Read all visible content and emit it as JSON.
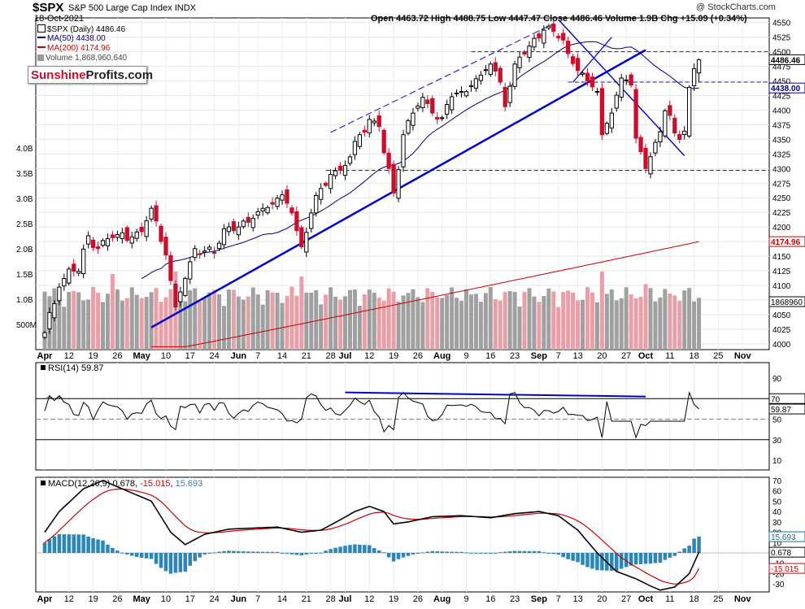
{
  "header": {
    "symbol": "$SPX",
    "name": "S&P 500 Large Cap Index",
    "exchange": "INDX",
    "date": "18-Oct-2021",
    "ohlc": "Open 4463.72  High 4488.75  Low 4447.47  Close 4486.46  Volume 1.9B  Chg +15.09 (+0.34%)",
    "watermark": "@ StockCharts.com"
  },
  "legend": {
    "price": "$SPX (Daily) 4486.46",
    "ma50": "MA(50) 4438.00",
    "ma200": "MA(200) 4174.96",
    "volume": "Volume 1,868,960,640"
  },
  "logo": {
    "part1": "Sunshine",
    "part2": "Profits.com"
  },
  "price_panel": {
    "y_ticks": [
      4000,
      4025,
      4050,
      4075,
      4100,
      4125,
      4150,
      4175,
      4200,
      4225,
      4250,
      4275,
      4300,
      4325,
      4350,
      4375,
      4400,
      4425,
      4450,
      4475,
      4500,
      4525,
      4550
    ],
    "y_tick_labels": [
      "4000",
      "4025",
      "4050",
      "4075",
      "4100",
      "4125",
      "4150",
      "4175",
      "4200",
      "4225",
      "4250",
      "4275",
      "4300",
      "4325",
      "4350",
      "4375",
      "4400",
      "4425",
      "4450",
      "4475",
      "4500",
      "4525",
      "4550"
    ],
    "volume_labels": [
      "4.0B",
      "3.5B",
      "3.0B",
      "2.5B",
      "2.0B",
      "1.5B",
      "1.0B",
      "500M"
    ],
    "badges": [
      {
        "text": "4486.46",
        "value": 4486.46,
        "color": "#000000",
        "bg": "#ffffff"
      },
      {
        "text": "4438.00",
        "value": 4438.0,
        "color": "#000080",
        "bg": "#ffffff"
      },
      {
        "text": "4174.96",
        "value": 4174.96,
        "color": "#cc0000",
        "bg": "#ffffff"
      }
    ],
    "volume_badge": "1868960"
  },
  "x_axis": {
    "labels": [
      {
        "text": "Apr",
        "i": 0
      },
      {
        "text": "12",
        "i": 5
      },
      {
        "text": "19",
        "i": 10
      },
      {
        "text": "26",
        "i": 15
      },
      {
        "text": "May",
        "i": 20
      },
      {
        "text": "10",
        "i": 25
      },
      {
        "text": "17",
        "i": 30
      },
      {
        "text": "24",
        "i": 35
      },
      {
        "text": "Jun",
        "i": 40
      },
      {
        "text": "7",
        "i": 44
      },
      {
        "text": "14",
        "i": 49
      },
      {
        "text": "21",
        "i": 54
      },
      {
        "text": "28",
        "i": 59
      },
      {
        "text": "Jul",
        "i": 62
      },
      {
        "text": "12",
        "i": 67
      },
      {
        "text": "19",
        "i": 72
      },
      {
        "text": "26",
        "i": 77
      },
      {
        "text": "Aug",
        "i": 82
      },
      {
        "text": "9",
        "i": 87
      },
      {
        "text": "16",
        "i": 92
      },
      {
        "text": "23",
        "i": 97
      },
      {
        "text": "Sep",
        "i": 102
      },
      {
        "text": "7",
        "i": 106
      },
      {
        "text": "13",
        "i": 110
      },
      {
        "text": "20",
        "i": 115
      },
      {
        "text": "27",
        "i": 120
      },
      {
        "text": "Oct",
        "i": 124
      },
      {
        "text": "11",
        "i": 129
      },
      {
        "text": "18",
        "i": 134
      },
      {
        "text": "25",
        "i": 139
      },
      {
        "text": "Nov",
        "i": 144
      }
    ]
  },
  "rsi_panel": {
    "label": "RSI(14) 59.87",
    "y_ticks": [
      10,
      30,
      50,
      70,
      90
    ],
    "y_tick_labels": [
      "10",
      "30",
      "50",
      "70",
      "90"
    ],
    "badges": [
      {
        "text": "70",
        "value": 70
      },
      {
        "text": "59.87",
        "value": 59.87
      }
    ]
  },
  "macd_panel": {
    "label": "MACD(12,26,9)",
    "v1": "0.678",
    "v2": "-15.015",
    "v3": "15.693",
    "y_ticks": [
      -30,
      -20,
      -10,
      0,
      10,
      20,
      30,
      40,
      50,
      60,
      70
    ],
    "y_tick_labels": [
      "-30",
      "-20",
      "-10",
      "0",
      "10",
      "20",
      "30",
      "40",
      "50",
      "60",
      "70"
    ],
    "badges": [
      {
        "text": "15.693",
        "value": 15.693,
        "color": "#1a6b9a"
      },
      {
        "text": "0.678",
        "value": 0.678,
        "color": "#000000"
      },
      {
        "text": "-15.015",
        "value": -15.015,
        "color": "#cc0000"
      }
    ]
  },
  "colors": {
    "up_candle": "#ffffff",
    "down_candle": "#c8102e",
    "ma50": "#000080",
    "ma200": "#cc0000",
    "trend": "#0000cc",
    "volume_up": "#a0a0a0",
    "volume_down": "#e8a0a8",
    "macd_hist": "#2f86b4",
    "rsi_fill": "#3a7a3a"
  },
  "chart_data": {
    "type": "line",
    "title": "$SPX S&P 500 Large Cap Index INDX",
    "period": "Daily",
    "close_series": [
      {
        "date": "Apr 1",
        "close": 4019
      },
      {
        "date": "Apr 12",
        "close": 4128
      },
      {
        "date": "Apr 16",
        "close": 4185
      },
      {
        "date": "Apr 28",
        "close": 4183
      },
      {
        "date": "May 7",
        "close": 4232
      },
      {
        "date": "May 12",
        "close": 4063
      },
      {
        "date": "May 21",
        "close": 4155
      },
      {
        "date": "Jun 7",
        "close": 4226
      },
      {
        "date": "Jun 14",
        "close": 4255
      },
      {
        "date": "Jun 18",
        "close": 4166
      },
      {
        "date": "Jun 28",
        "close": 4290
      },
      {
        "date": "Jul 12",
        "close": 4384
      },
      {
        "date": "Jul 19",
        "close": 4258
      },
      {
        "date": "Jul 26",
        "close": 4422
      },
      {
        "date": "Aug 9",
        "close": 4432
      },
      {
        "date": "Aug 16",
        "close": 4479
      },
      {
        "date": "Aug 19",
        "close": 4406
      },
      {
        "date": "Aug 23",
        "close": 4479
      },
      {
        "date": "Sep 2",
        "close": 4537
      },
      {
        "date": "Sep 13",
        "close": 4468
      },
      {
        "date": "Sep 20",
        "close": 4358
      },
      {
        "date": "Sep 24",
        "close": 4455
      },
      {
        "date": "Oct 4",
        "close": 4301
      },
      {
        "date": "Oct 7",
        "close": 4399
      },
      {
        "date": "Oct 13",
        "close": 4364
      },
      {
        "date": "Oct 14",
        "close": 4439
      },
      {
        "date": "Oct 15",
        "close": 4471
      },
      {
        "date": "Oct 18",
        "close": 4486.46
      }
    ],
    "ma50_last": 4438.0,
    "ma200_last": 4174.96,
    "volume_last": 1868960640,
    "rsi_last": 59.87,
    "macd": {
      "macd": 0.678,
      "signal": -15.015,
      "histogram": 15.693
    },
    "y_range": [
      4000,
      4550
    ]
  }
}
